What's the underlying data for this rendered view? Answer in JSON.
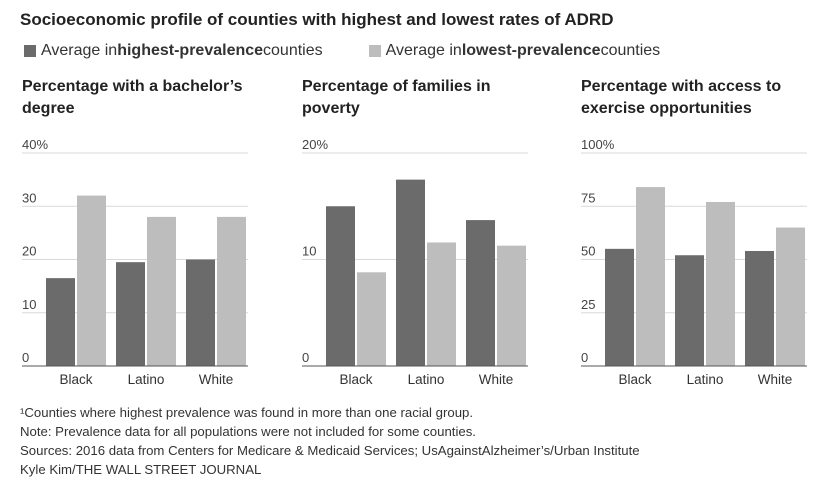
{
  "title": "Socioeconomic profile of counties with highest and lowest rates of ADRD",
  "legend": {
    "high": {
      "prefix": "Average in ",
      "bold": "highest-prevalence",
      "suffix": " counties",
      "color": "#6b6b6b"
    },
    "low": {
      "prefix": "Average in ",
      "bold": "lowest-prevalence",
      "suffix": " counties",
      "color": "#bdbdbd"
    }
  },
  "chart_data": [
    {
      "type": "bar",
      "title": "Percentage with a bachelor’s degree",
      "categories": [
        "Black",
        "Latino",
        "White"
      ],
      "series": [
        {
          "name": "Average in highest-prevalence counties",
          "values": [
            16.5,
            19.5,
            20
          ]
        },
        {
          "name": "Average in lowest-prevalence counties",
          "values": [
            32,
            28,
            28
          ]
        }
      ],
      "ylim": [
        0,
        40
      ],
      "yticks": [
        "0",
        "10",
        "20",
        "30",
        "40%"
      ],
      "grid": true
    },
    {
      "type": "bar",
      "title": "Percentage of families in poverty",
      "categories": [
        "Black",
        "Latino",
        "White"
      ],
      "series": [
        {
          "name": "Average in highest-prevalence counties",
          "values": [
            15,
            17.5,
            13.7
          ]
        },
        {
          "name": "Average in lowest-prevalence counties",
          "values": [
            8.8,
            11.6,
            11.3
          ]
        }
      ],
      "ylim": [
        0,
        20
      ],
      "yticks": [
        "0",
        "10",
        "20%"
      ],
      "grid": true
    },
    {
      "type": "bar",
      "title": "Percentage with access to exercise opportunities",
      "categories": [
        "Black",
        "Latino",
        "White"
      ],
      "series": [
        {
          "name": "Average in highest-prevalence counties",
          "values": [
            55,
            52,
            54
          ]
        },
        {
          "name": "Average in lowest-prevalence counties",
          "values": [
            84,
            77,
            65
          ]
        }
      ],
      "ylim": [
        0,
        100
      ],
      "yticks": [
        "0",
        "25",
        "50",
        "75",
        "100%"
      ],
      "grid": true
    }
  ],
  "notes": [
    "¹Counties where highest prevalence was found in more than one racial group.",
    "Note: Prevalence data for all populations were not included for some counties.",
    "Sources: 2016 data from Centers for Medicare & Medicaid Services; UsAgainstAlzheimer’s/Urban Institute",
    "Kyle Kim/THE WALL STREET JOURNAL"
  ]
}
